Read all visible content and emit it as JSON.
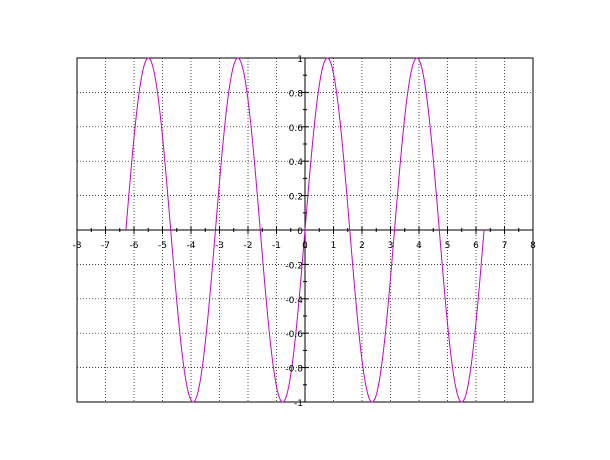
{
  "chart_data": {
    "type": "line",
    "title": "",
    "xlabel": "",
    "ylabel": "",
    "xlim": [
      -8,
      8
    ],
    "ylim": [
      -1,
      1
    ],
    "grid": true,
    "x_ticks": [
      -8,
      -7,
      -6,
      -5,
      -4,
      -3,
      -2,
      -1,
      0,
      1,
      2,
      3,
      4,
      5,
      6,
      7,
      8
    ],
    "x_tick_labels": [
      "-8",
      "-7",
      "-6",
      "-5",
      "-4",
      "-3",
      "-2",
      "-1",
      "0",
      "1",
      "2",
      "3",
      "4",
      "5",
      "6",
      "7",
      "8"
    ],
    "y_ticks": [
      -1,
      -0.8,
      -0.6,
      -0.4,
      -0.2,
      0,
      0.2,
      0.4,
      0.6,
      0.8,
      1
    ],
    "y_tick_labels": [
      "-1",
      "-0.8",
      "-0.6",
      "-0.4",
      "-0.2",
      "0",
      "0.2",
      "0.4",
      "0.6",
      "0.8",
      "1"
    ],
    "series": [
      {
        "function": "sin(2x)",
        "x_range": [
          -6.283,
          6.283
        ],
        "color": "#cc00cc"
      }
    ]
  }
}
